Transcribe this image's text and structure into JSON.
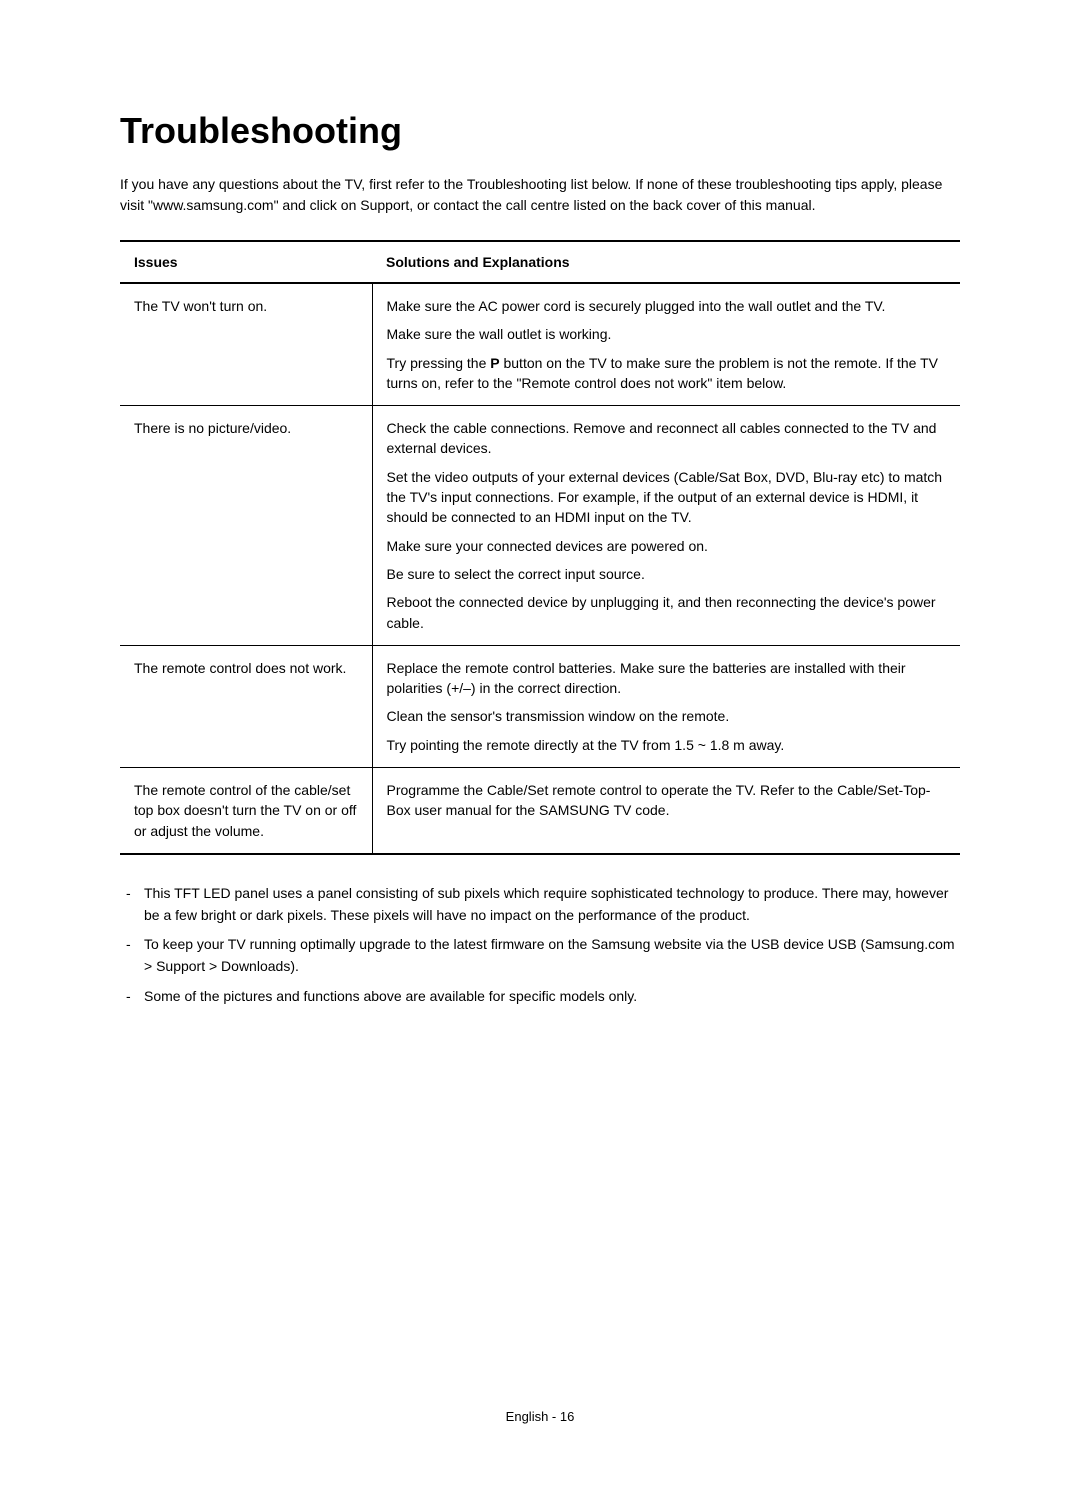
{
  "title": "Troubleshooting",
  "intro": "If you have any questions about the TV, first refer to the Troubleshooting list below. If none of these troubleshooting tips apply, please visit \"www.samsung.com\" and click on Support, or contact the call centre listed on the back cover of this manual.",
  "table": {
    "headers": {
      "issues": "Issues",
      "solutions": "Solutions and Explanations"
    },
    "rows": [
      {
        "issue": "The TV won't turn on.",
        "sols": [
          "Make sure the AC power cord is securely plugged into the wall outlet and the TV.",
          "Make sure the wall outlet is working.",
          "Try pressing the P button on the TV to make sure the problem is not the remote. If the TV turns on, refer to the \"Remote control does not work\" item below."
        ]
      },
      {
        "issue": "There is no picture/video.",
        "sols": [
          "Check the cable connections. Remove and reconnect all cables connected to the TV and external devices.",
          "Set the video outputs of your external devices (Cable/Sat Box, DVD, Blu-ray etc) to match the TV's input connections. For example, if the output of an external device is HDMI, it should be connected to an HDMI input on the TV.",
          "Make sure your connected devices are powered on.",
          "Be sure to select the correct input source.",
          "Reboot the connected device by unplugging it, and then reconnecting the device's power cable."
        ]
      },
      {
        "issue": "The remote control does not work.",
        "sols": [
          "Replace the remote control batteries. Make sure the batteries are installed with their polarities (+/–) in the correct direction.",
          "Clean the sensor's transmission window on the remote.",
          "Try pointing the remote directly at the TV from 1.5 ~ 1.8 m away."
        ]
      },
      {
        "issue": "The remote control of the cable/set top box doesn't turn the TV on or off or adjust the volume.",
        "sols": [
          "Programme the Cable/Set remote control to operate the TV. Refer to the Cable/Set-Top-Box user manual for the SAMSUNG TV code."
        ]
      }
    ]
  },
  "notes": [
    "This TFT LED panel uses a panel consisting of sub pixels which require sophisticated technology to produce. There may, however be a few bright or dark pixels. These pixels will have no impact on the performance of the product.",
    "To keep your TV running optimally upgrade to the latest firmware on the Samsung website via the USB device USB (Samsung.com > Support > Downloads).",
    "Some of the pictures and functions above are available for specific models only."
  ],
  "footer": "English - 16"
}
